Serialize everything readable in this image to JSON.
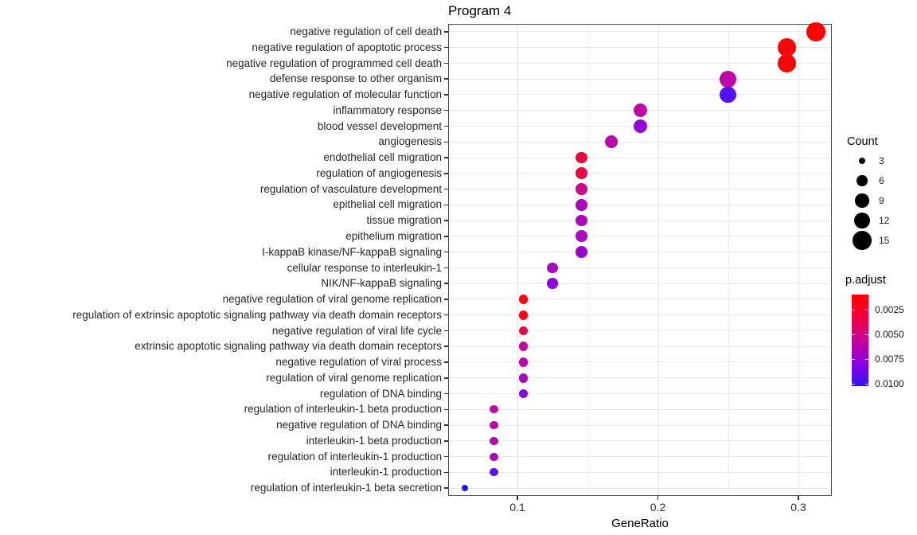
{
  "title": "Program 4",
  "axes": {
    "x": {
      "label": "GeneRatio",
      "tick_labels": [
        "0.1",
        "0.2",
        "0.3"
      ],
      "tick_values": [
        0.1,
        0.2,
        0.3
      ],
      "minor_tick_values": [
        0.15,
        0.25
      ]
    },
    "y": {
      "label": ""
    }
  },
  "legend": {
    "count": {
      "title": "Count",
      "items": [
        {
          "label": "3",
          "value": 3
        },
        {
          "label": "6",
          "value": 6
        },
        {
          "label": "9",
          "value": 9
        },
        {
          "label": "12",
          "value": 12
        },
        {
          "label": "15",
          "value": 15
        }
      ]
    },
    "p_adjust": {
      "title": "p.adjust",
      "tick_labels": [
        "0.0025",
        "0.0050",
        "0.0075",
        "0.0100"
      ],
      "gradient_stops": [
        "#FF0000",
        "#F10040",
        "#C9009A",
        "#8A00DE",
        "#3812F3"
      ]
    }
  },
  "chart_data": {
    "type": "scatter",
    "title": "Program 4",
    "xlabel": "GeneRatio",
    "ylabel": "",
    "xlim": [
      0.051,
      0.324
    ],
    "x_ticks": [
      0.1,
      0.2,
      0.3
    ],
    "grid": true,
    "legend_position": "right",
    "size_encoding": "Count",
    "color_encoding": "p.adjust",
    "points": [
      {
        "term": "negative regulation of cell death",
        "gene_ratio": 0.3125,
        "count": 15,
        "color": "#FA0404"
      },
      {
        "term": "negative regulation of apoptotic process",
        "gene_ratio": 0.2917,
        "count": 14,
        "color": "#FA0505"
      },
      {
        "term": "negative regulation of programmed cell death",
        "gene_ratio": 0.2917,
        "count": 14,
        "color": "#FA0505"
      },
      {
        "term": "defense response to other organism",
        "gene_ratio": 0.25,
        "count": 12,
        "color": "#BE06A6"
      },
      {
        "term": "negative regulation of molecular function",
        "gene_ratio": 0.25,
        "count": 12,
        "color": "#5410EE"
      },
      {
        "term": "inflammatory response",
        "gene_ratio": 0.1875,
        "count": 9,
        "color": "#C008A6"
      },
      {
        "term": "blood vessel development",
        "gene_ratio": 0.1875,
        "count": 9,
        "color": "#9406D6"
      },
      {
        "term": "angiogenesis",
        "gene_ratio": 0.1667,
        "count": 8,
        "color": "#BC07AC"
      },
      {
        "term": "endothelial cell migration",
        "gene_ratio": 0.1458,
        "count": 7,
        "color": "#EB0B40"
      },
      {
        "term": "regulation of angiogenesis",
        "gene_ratio": 0.1458,
        "count": 7,
        "color": "#E70A48"
      },
      {
        "term": "regulation of vasculature development",
        "gene_ratio": 0.1458,
        "count": 7,
        "color": "#CC0989"
      },
      {
        "term": "epithelial cell migration",
        "gene_ratio": 0.1458,
        "count": 7,
        "color": "#AC07B9"
      },
      {
        "term": "tissue migration",
        "gene_ratio": 0.1458,
        "count": 7,
        "color": "#AC07B9"
      },
      {
        "term": "epithelium migration",
        "gene_ratio": 0.1458,
        "count": 7,
        "color": "#AB07BB"
      },
      {
        "term": "I-kappaB kinase/NF-kappaB signaling",
        "gene_ratio": 0.1458,
        "count": 7,
        "color": "#9B06CF"
      },
      {
        "term": "cellular response to interleukin-1",
        "gene_ratio": 0.125,
        "count": 6,
        "color": "#A807C0"
      },
      {
        "term": "NIK/NF-kappaB signaling",
        "gene_ratio": 0.125,
        "count": 6,
        "color": "#8D05DE"
      },
      {
        "term": "negative regulation of viral genome replication",
        "gene_ratio": 0.1042,
        "count": 5,
        "color": "#FB0510"
      },
      {
        "term": "regulation of extrinsic apoptotic signaling pathway via death domain receptors",
        "gene_ratio": 0.1042,
        "count": 5,
        "color": "#FA0513"
      },
      {
        "term": "negative regulation of viral life cycle",
        "gene_ratio": 0.1042,
        "count": 5,
        "color": "#E50950"
      },
      {
        "term": "extrinsic apoptotic signaling pathway via death domain receptors",
        "gene_ratio": 0.1042,
        "count": 5,
        "color": "#C40998"
      },
      {
        "term": "negative regulation of viral process",
        "gene_ratio": 0.1042,
        "count": 5,
        "color": "#B808AB"
      },
      {
        "term": "regulation of viral genome replication",
        "gene_ratio": 0.1042,
        "count": 5,
        "color": "#AA07BD"
      },
      {
        "term": "regulation of DNA binding",
        "gene_ratio": 0.1042,
        "count": 5,
        "color": "#8805E3"
      },
      {
        "term": "regulation of interleukin-1 beta production",
        "gene_ratio": 0.0833,
        "count": 4,
        "color": "#C309A0"
      },
      {
        "term": "negative regulation of DNA binding",
        "gene_ratio": 0.0833,
        "count": 4,
        "color": "#BB08A8"
      },
      {
        "term": "interleukin-1 beta production",
        "gene_ratio": 0.0833,
        "count": 4,
        "color": "#B408B0"
      },
      {
        "term": "regulation of interleukin-1 production",
        "gene_ratio": 0.0833,
        "count": 4,
        "color": "#AD07B8"
      },
      {
        "term": "interleukin-1 production",
        "gene_ratio": 0.0833,
        "count": 4,
        "color": "#5517EF"
      },
      {
        "term": "regulation of interleukin-1 beta secretion",
        "gene_ratio": 0.0625,
        "count": 3,
        "color": "#2013F4"
      }
    ]
  }
}
